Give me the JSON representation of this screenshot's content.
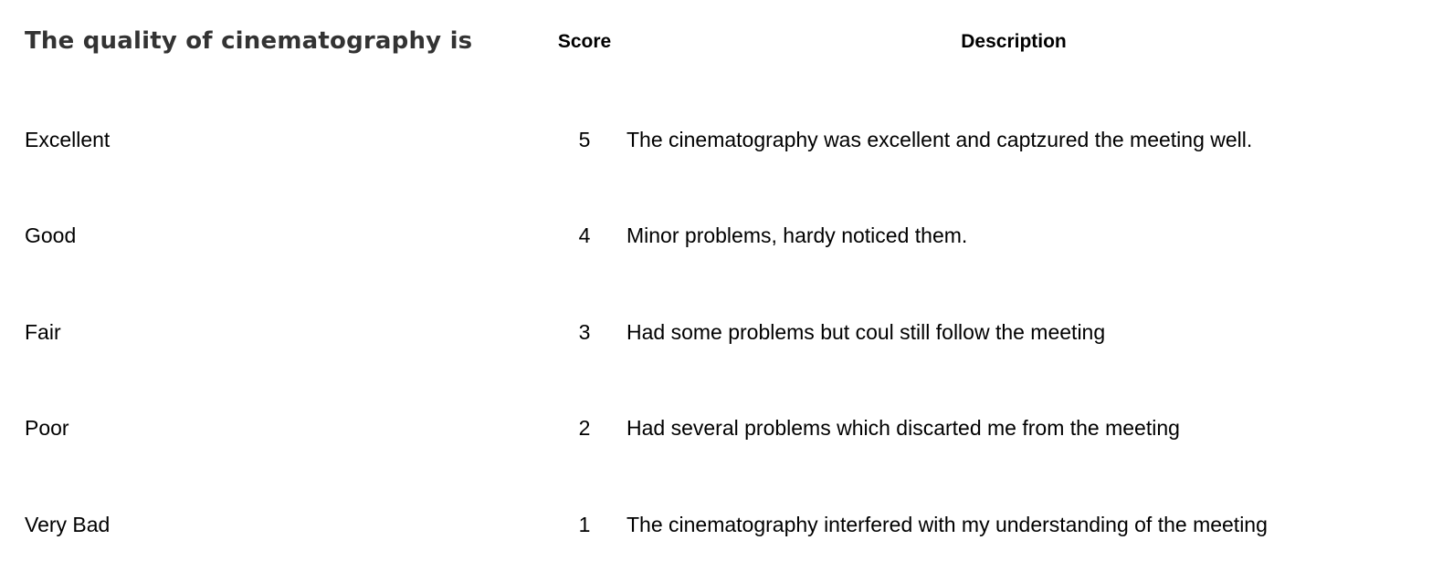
{
  "header": {
    "question": "The quality of cinematography is",
    "score_label": "Score",
    "description_label": "Description"
  },
  "rows": [
    {
      "label": "Excellent",
      "score": "5",
      "description": "The cinematography was excellent and captzured the meeting well."
    },
    {
      "label": "Good",
      "score": "4",
      "description": "Minor problems, hardy noticed them."
    },
    {
      "label": "Fair",
      "score": "3",
      "description": "Had some problems but coul still follow the meeting"
    },
    {
      "label": "Poor",
      "score": "2",
      "description": "Had several problems which discarted me from the meeting"
    },
    {
      "label": "Very Bad",
      "score": "1",
      "description": "The cinematography interfered with my understanding of the meeting"
    }
  ]
}
